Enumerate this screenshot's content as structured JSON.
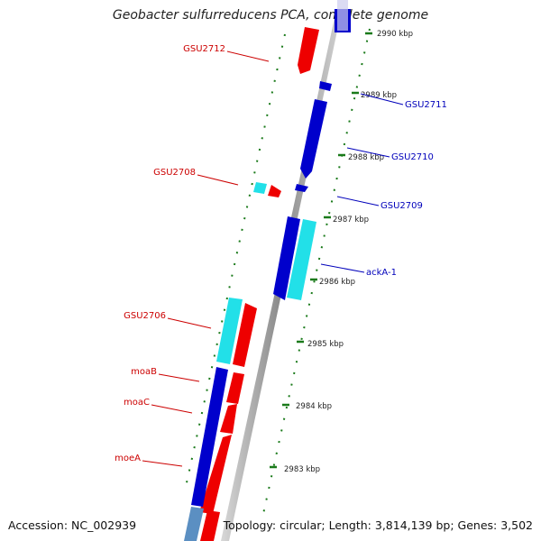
{
  "title": "Geobacter sulfurreducens PCA, complete genome",
  "footer": {
    "accession": "Accession: NC_002939",
    "topology": "Topology: circular; Length: 3,814,139 bp; Genes: 3,502"
  },
  "colors": {
    "forward_strand": "#ee0000",
    "reverse_strand": "#0000cc",
    "rna_feature": "#22e0e8",
    "label_forward": "#cc0000",
    "label_reverse": "#0000bb",
    "backbone": "#999999",
    "tick": "#1a7a1a"
  },
  "scale_ticks": [
    {
      "label": "2990 kbp"
    },
    {
      "label": "2989 kbp"
    },
    {
      "label": "2988 kbp"
    },
    {
      "label": "2987 kbp"
    },
    {
      "label": "2986 kbp"
    },
    {
      "label": "2985 kbp"
    },
    {
      "label": "2984 kbp"
    },
    {
      "label": "2983 kbp"
    }
  ],
  "gene_labels": [
    {
      "name": "GSU2712",
      "strand": "forward"
    },
    {
      "name": "GSU2711",
      "strand": "reverse"
    },
    {
      "name": "GSU2710",
      "strand": "reverse"
    },
    {
      "name": "GSU2708",
      "strand": "forward"
    },
    {
      "name": "GSU2709",
      "strand": "reverse"
    },
    {
      "name": "ackA-1",
      "strand": "reverse"
    },
    {
      "name": "GSU2706",
      "strand": "forward"
    },
    {
      "name": "moaB",
      "strand": "forward"
    },
    {
      "name": "moaC",
      "strand": "forward"
    },
    {
      "name": "moeA",
      "strand": "forward"
    }
  ]
}
